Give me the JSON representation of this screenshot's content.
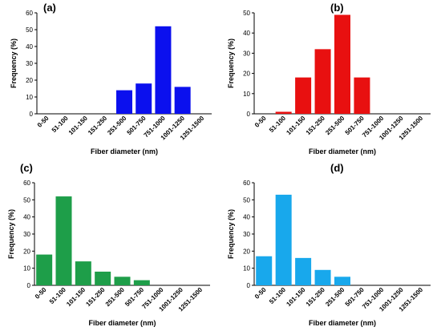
{
  "chart_data": [
    {
      "type": "bar",
      "label": "(a)",
      "categories": [
        "0-50",
        "51-100",
        "101-150",
        "151-250",
        "251-500",
        "501-750",
        "751-1000",
        "1001-1250",
        "1251-1500"
      ],
      "values": [
        0,
        0,
        0,
        0,
        14,
        18,
        52,
        16,
        0
      ],
      "xlabel": "Fiber diameter (nm)",
      "ylabel": "Frequency (%)",
      "ylim": [
        0,
        60
      ],
      "yticks": [
        0,
        10,
        20,
        30,
        40,
        50,
        60
      ],
      "color": "#0b10ee"
    },
    {
      "type": "bar",
      "label": "(b)",
      "categories": [
        "0-50",
        "51-100",
        "101-150",
        "151-250",
        "251-500",
        "501-750",
        "751-1000",
        "1001-1250",
        "1251-1500"
      ],
      "values": [
        0,
        1,
        18,
        32,
        49,
        18,
        0,
        0,
        0
      ],
      "xlabel": "Fiber diameter (nm)",
      "ylabel": "Frequency (%)",
      "ylim": [
        0,
        50
      ],
      "yticks": [
        0,
        10,
        20,
        30,
        40,
        50
      ],
      "color": "#e81010"
    },
    {
      "type": "bar",
      "label": "(c)",
      "categories": [
        "0-50",
        "51-100",
        "101-150",
        "151-250",
        "251-500",
        "501-750",
        "751-1000",
        "1001-1250",
        "1251-1500"
      ],
      "values": [
        18,
        52,
        14,
        8,
        5,
        3,
        0,
        0,
        0
      ],
      "xlabel": "Fiber diameter (nm)",
      "ylabel": "Frequency (%)",
      "ylim": [
        0,
        60
      ],
      "yticks": [
        0,
        10,
        20,
        30,
        40,
        50,
        60
      ],
      "color": "#1e9e49"
    },
    {
      "type": "bar",
      "label": "(d)",
      "categories": [
        "0-50",
        "51-100",
        "101-150",
        "151-250",
        "251-500",
        "501-750",
        "751-1000",
        "1001-1250",
        "1251-1500"
      ],
      "values": [
        17,
        53,
        16,
        9,
        5,
        0,
        0,
        0,
        0
      ],
      "xlabel": "Fiber diameter (nm)",
      "ylabel": "Frequency (%)",
      "ylim": [
        0,
        60
      ],
      "yticks": [
        0,
        10,
        20,
        30,
        40,
        50,
        60
      ],
      "color": "#18a8ec"
    }
  ]
}
